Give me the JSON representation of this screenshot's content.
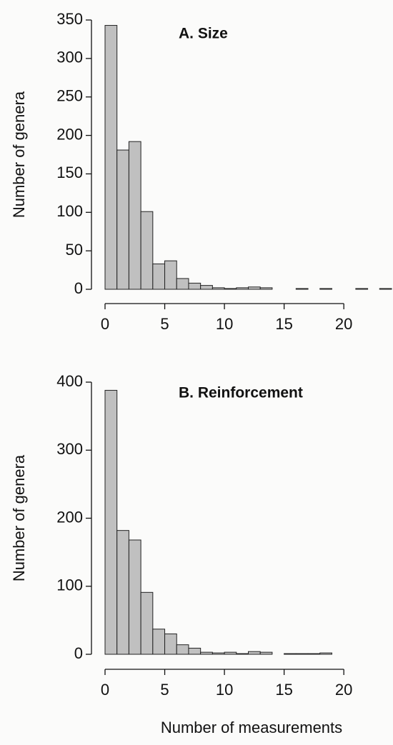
{
  "chart_data": [
    {
      "type": "histogram",
      "title": "A. Size",
      "ylabel": "Number of genera",
      "bins": [
        0,
        1,
        2,
        3,
        4,
        5,
        6,
        7,
        8,
        9,
        10,
        11,
        12,
        13,
        14,
        15,
        16,
        17,
        18,
        19,
        20,
        21,
        22,
        23,
        24
      ],
      "values": [
        343,
        181,
        192,
        101,
        33,
        37,
        14,
        8,
        5,
        2,
        1,
        2,
        3,
        2,
        0,
        0,
        1,
        0,
        1,
        0,
        0,
        1,
        0,
        1
      ],
      "color": "#c0c0c0",
      "xlim": [
        0,
        24
      ],
      "xticks": [
        0,
        5,
        10,
        15,
        20
      ],
      "ylim": [
        0,
        350
      ],
      "yticks": [
        0,
        50,
        100,
        150,
        200,
        250,
        300,
        350
      ]
    },
    {
      "type": "histogram",
      "title": "B. Reinforcement",
      "ylabel": "Number of genera",
      "xlabel": "Number of measurements",
      "bins": [
        0,
        1,
        2,
        3,
        4,
        5,
        6,
        7,
        8,
        9,
        10,
        11,
        12,
        13,
        14,
        15,
        16,
        17,
        18,
        19,
        20,
        21,
        22,
        23,
        24
      ],
      "values": [
        388,
        182,
        168,
        91,
        37,
        30,
        14,
        9,
        3,
        2,
        3,
        1,
        4,
        3,
        0,
        1,
        1,
        1,
        2,
        0,
        0,
        0,
        0,
        0
      ],
      "color": "#c0c0c0",
      "xlim": [
        0,
        24
      ],
      "xticks": [
        0,
        5,
        10,
        15,
        20
      ],
      "ylim": [
        0,
        400
      ],
      "yticks": [
        0,
        100,
        200,
        300,
        400
      ]
    }
  ]
}
